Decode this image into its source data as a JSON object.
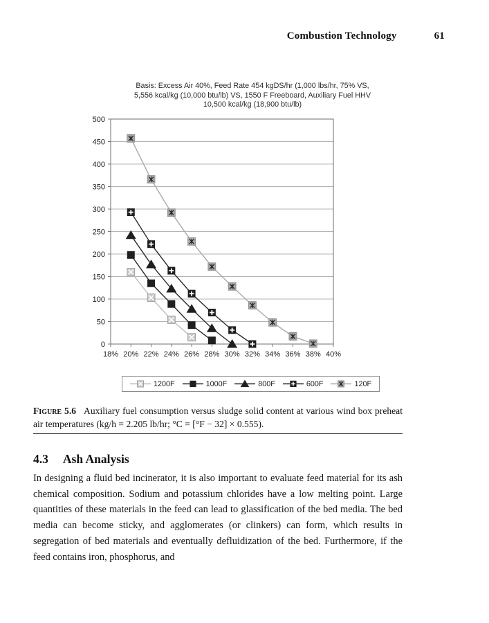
{
  "header": {
    "title": "Combustion Technology",
    "page_number": "61"
  },
  "chart_data": {
    "type": "line",
    "title_lines": [
      "Basis: Excess Air 40%, Feed Rate 454 kgDS/hr (1,000 lbs/hr, 75% VS,",
      "5,556 kcal/kg (10,000 btu/lb) VS, 1550 F Freeboard, Auxiliary Fuel HHV",
      "10,500 kcal/kg (18,900 btu/lb)"
    ],
    "xlabel": "",
    "ylabel": "",
    "xlim": [
      18,
      40
    ],
    "ylim": [
      0,
      500
    ],
    "x_ticks": [
      18,
      20,
      22,
      24,
      26,
      28,
      30,
      32,
      34,
      36,
      38,
      40
    ],
    "x_tick_labels": [
      "18%",
      "20%",
      "22%",
      "24%",
      "26%",
      "28%",
      "30%",
      "32%",
      "34%",
      "36%",
      "38%",
      "40%"
    ],
    "y_ticks": [
      0,
      50,
      100,
      150,
      200,
      250,
      300,
      350,
      400,
      450,
      500
    ],
    "grid": "horizontal",
    "legend_position": "bottom",
    "colors": {
      "frame": "#7a7a7a",
      "gridline": "#b4b4b4",
      "tick_label": "#222222"
    },
    "series": [
      {
        "name": "1200F",
        "marker": "square-x-light",
        "line_color": "#bdbdbd",
        "marker_fill": "#c8c8c8",
        "x": [
          20,
          22,
          24,
          26
        ],
        "values": [
          160,
          103,
          54,
          15
        ]
      },
      {
        "name": "1000F",
        "marker": "square-filled",
        "line_color": "#2a2a2a",
        "marker_fill": "#1f1f1f",
        "x": [
          20,
          22,
          24,
          26,
          28
        ],
        "values": [
          198,
          135,
          89,
          42,
          8
        ]
      },
      {
        "name": "800F",
        "marker": "triangle-filled",
        "line_color": "#2a2a2a",
        "marker_fill": "#1f1f1f",
        "x": [
          20,
          22,
          24,
          26,
          28,
          30
        ],
        "values": [
          242,
          177,
          123,
          78,
          35,
          0
        ]
      },
      {
        "name": "600F",
        "marker": "square-plus",
        "line_color": "#2a2a2a",
        "marker_fill": "#1f1f1f",
        "x": [
          20,
          22,
          24,
          26,
          28,
          30,
          32
        ],
        "values": [
          293,
          222,
          163,
          112,
          70,
          31,
          0
        ]
      },
      {
        "name": "120F",
        "marker": "square-asterisk",
        "line_color": "#a9a9a9",
        "marker_fill": "#a8a8a8",
        "x": [
          20,
          22,
          24,
          26,
          28,
          30,
          32,
          34,
          36,
          38
        ],
        "values": [
          457,
          366,
          292,
          228,
          172,
          128,
          86,
          48,
          17,
          1
        ]
      }
    ]
  },
  "figure": {
    "label": "Figure 5.6",
    "caption": "Auxiliary fuel consumption versus sludge solid content at various wind box preheat air temperatures (kg/h = 2.205 lb/hr; °C = [°F − 32] × 0.555)."
  },
  "section": {
    "number": "4.3",
    "title": "Ash Analysis",
    "body": "In designing a fluid bed incinerator, it is also important to evaluate feed material for its ash chemical composition. Sodium and potassium chlorides have a low melting point. Large quantities of these materials in the feed can lead to glassification of the bed media. The bed media can become sticky, and agglomerates (or clinkers) can form, which results in segregation of bed materials and eventually defluidization of the bed. Furthermore, if the feed contains iron, phosphorus, and"
  }
}
